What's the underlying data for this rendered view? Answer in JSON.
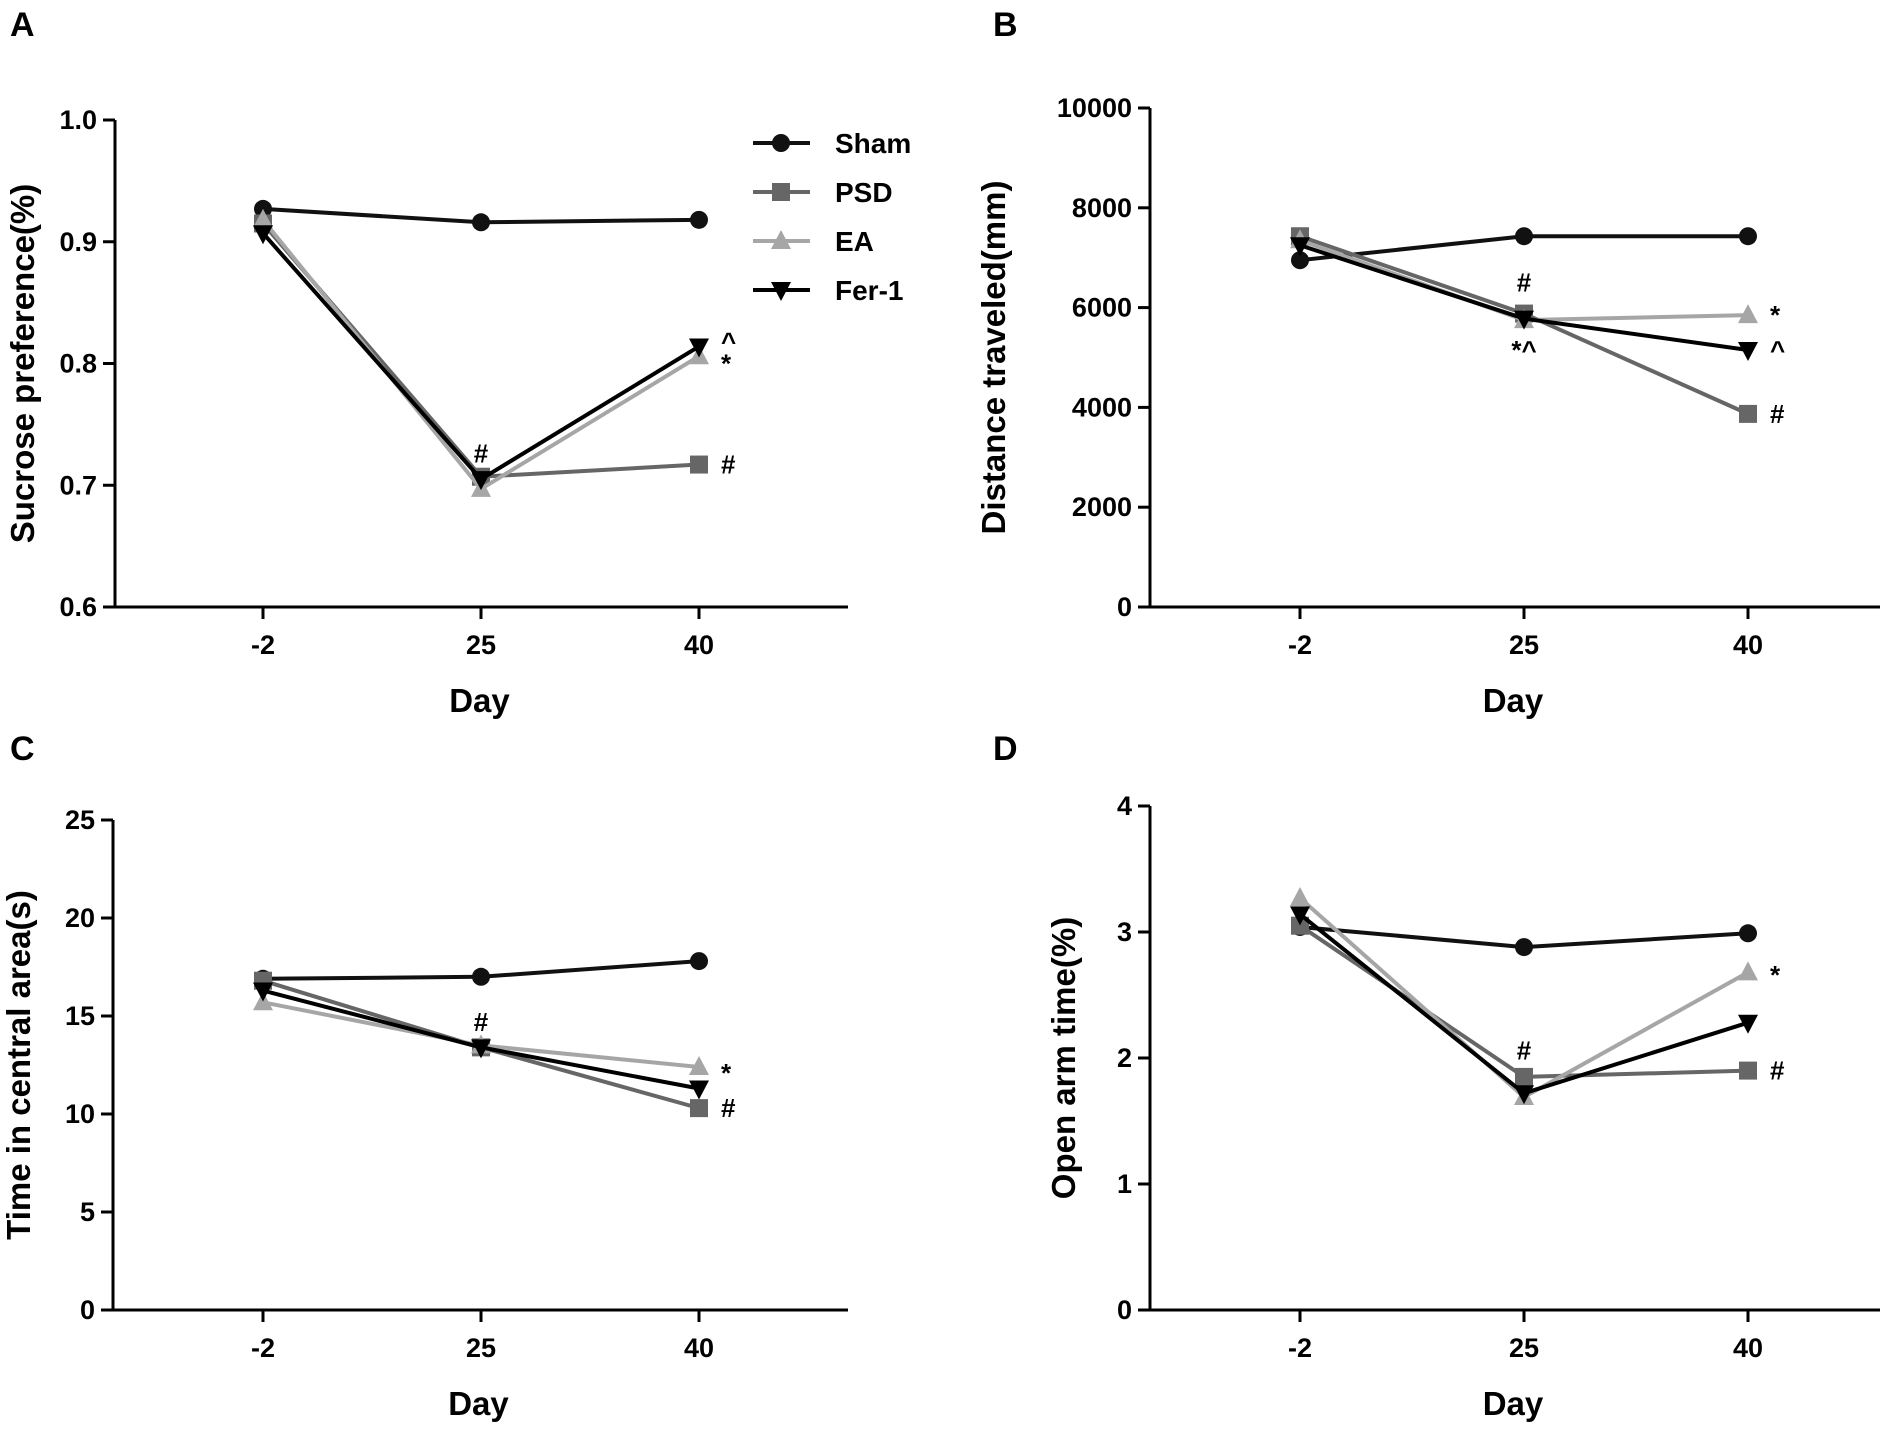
{
  "colors": {
    "Sham": "#111111",
    "PSD": "#666666",
    "EA": "#a6a6a6",
    "Fer-1": "#000000"
  },
  "legend": [
    {
      "name": "Sham",
      "marker": "circle"
    },
    {
      "name": "PSD",
      "marker": "square"
    },
    {
      "name": "EA",
      "marker": "triangle-up"
    },
    {
      "name": "Fer-1",
      "marker": "triangle-down"
    }
  ],
  "chart_data": [
    {
      "panel": "A",
      "type": "line",
      "categories": [
        "-2",
        "25",
        "40"
      ],
      "xlabel": "Day",
      "ylabel": "Sucrose preference(%)",
      "ylim": [
        0.6,
        1.0
      ],
      "yticks": [
        "0.6",
        "0.7",
        "0.8",
        "0.9",
        "1.0"
      ],
      "yticks_values": [
        0.6,
        0.7,
        0.8,
        0.9,
        1.0
      ],
      "series": [
        {
          "name": "Sham",
          "values": [
            0.927,
            0.916,
            0.918
          ]
        },
        {
          "name": "PSD",
          "values": [
            0.915,
            0.707,
            0.717
          ]
        },
        {
          "name": "EA",
          "values": [
            0.918,
            0.697,
            0.806
          ]
        },
        {
          "name": "Fer-1",
          "values": [
            0.907,
            0.705,
            0.814
          ]
        }
      ],
      "annotations": [
        {
          "text": "#",
          "cat": 1,
          "y": 0.726,
          "dx": 0
        },
        {
          "text": "#",
          "cat": 2,
          "y": 0.717,
          "dx": 22
        },
        {
          "text": "^",
          "cat": 2,
          "y": 0.818,
          "dx": 22
        },
        {
          "text": "*",
          "cat": 2,
          "y": 0.8,
          "dx": 22
        }
      ]
    },
    {
      "panel": "B",
      "type": "line",
      "categories": [
        "-2",
        "25",
        "40"
      ],
      "xlabel": "Day",
      "ylabel": "Distance traveled(mm)",
      "ylim": [
        0,
        10000
      ],
      "yticks": [
        "0",
        "2000",
        "4000",
        "6000",
        "8000",
        "10000"
      ],
      "yticks_values": [
        0,
        2000,
        4000,
        6000,
        8000,
        10000
      ],
      "series": [
        {
          "name": "Sham",
          "values": [
            6950,
            7430,
            7430
          ]
        },
        {
          "name": "PSD",
          "values": [
            7430,
            5880,
            3870
          ]
        },
        {
          "name": "EA",
          "values": [
            7350,
            5750,
            5850
          ]
        },
        {
          "name": "Fer-1",
          "values": [
            7250,
            5780,
            5150
          ]
        }
      ],
      "annotations": [
        {
          "text": "#",
          "cat": 1,
          "y": 6500,
          "dx": 0
        },
        {
          "text": "*^",
          "cat": 1,
          "y": 5150,
          "dx": 0
        },
        {
          "text": "*",
          "cat": 2,
          "y": 5850,
          "dx": 22
        },
        {
          "text": "^",
          "cat": 2,
          "y": 5150,
          "dx": 22
        },
        {
          "text": "#",
          "cat": 2,
          "y": 3870,
          "dx": 22
        }
      ]
    },
    {
      "panel": "C",
      "type": "line",
      "categories": [
        "-2",
        "25",
        "40"
      ],
      "xlabel": "Day",
      "ylabel": "Time in central area(s)",
      "ylim": [
        0,
        25
      ],
      "yticks": [
        "0",
        "5",
        "10",
        "15",
        "20",
        "25"
      ],
      "yticks_values": [
        0,
        5,
        10,
        15,
        20,
        25
      ],
      "series": [
        {
          "name": "Sham",
          "values": [
            16.9,
            17.0,
            17.8
          ]
        },
        {
          "name": "PSD",
          "values": [
            16.8,
            13.4,
            10.3
          ]
        },
        {
          "name": "EA",
          "values": [
            15.7,
            13.5,
            12.4
          ]
        },
        {
          "name": "Fer-1",
          "values": [
            16.3,
            13.4,
            11.3
          ]
        }
      ],
      "annotations": [
        {
          "text": "#",
          "cat": 1,
          "y": 14.7,
          "dx": 0
        },
        {
          "text": "*",
          "cat": 2,
          "y": 12.1,
          "dx": 22
        },
        {
          "text": "#",
          "cat": 2,
          "y": 10.3,
          "dx": 22
        }
      ]
    },
    {
      "panel": "D",
      "type": "line",
      "categories": [
        "-2",
        "25",
        "40"
      ],
      "xlabel": "Day",
      "ylabel": "Open arm time(%)",
      "ylim": [
        0,
        4
      ],
      "yticks": [
        "0",
        "1",
        "2",
        "3",
        "4"
      ],
      "yticks_values": [
        0,
        1,
        2,
        3,
        4
      ],
      "series": [
        {
          "name": "Sham",
          "values": [
            3.04,
            2.88,
            2.99
          ]
        },
        {
          "name": "PSD",
          "values": [
            3.05,
            1.85,
            1.9
          ]
        },
        {
          "name": "EA",
          "values": [
            3.27,
            1.69,
            2.68
          ]
        },
        {
          "name": "Fer-1",
          "values": [
            3.14,
            1.72,
            2.28
          ]
        }
      ],
      "annotations": [
        {
          "text": "#",
          "cat": 1,
          "y": 2.06,
          "dx": 0
        },
        {
          "text": "*",
          "cat": 2,
          "y": 2.66,
          "dx": 22
        },
        {
          "text": "#",
          "cat": 2,
          "y": 1.9,
          "dx": 22
        }
      ]
    }
  ]
}
